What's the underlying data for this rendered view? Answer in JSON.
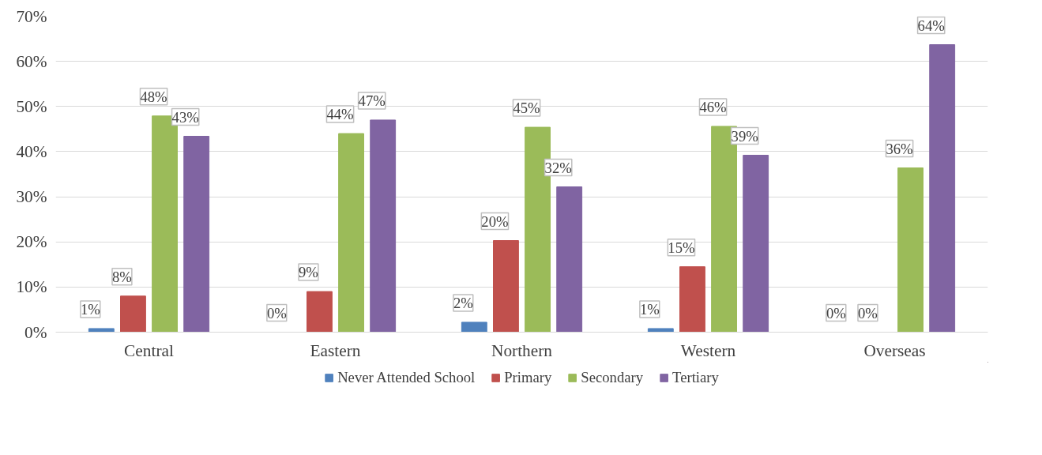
{
  "chart_data": {
    "type": "bar",
    "categories": [
      "Central",
      "Eastern",
      "Northern",
      "Western",
      "Overseas"
    ],
    "series": [
      {
        "name": "Never Attended School",
        "color": "#4f81bd",
        "values": [
          0.8,
          0,
          2.2,
          0.8,
          0
        ],
        "value_labels": [
          "1%",
          "0%",
          "2%",
          "1%",
          "0%"
        ]
      },
      {
        "name": "Primary",
        "color": "#c0504d",
        "values": [
          8,
          9,
          20.3,
          14.5,
          0
        ],
        "value_labels": [
          "8%",
          "9%",
          "20%",
          "15%",
          "0%"
        ]
      },
      {
        "name": "Secondary",
        "color": "#9bbb59",
        "values": [
          47.9,
          44,
          45.4,
          45.6,
          36.4
        ],
        "value_labels": [
          "48%",
          "44%",
          "45%",
          "46%",
          "36%"
        ]
      },
      {
        "name": "Tertiary",
        "color": "#8064a2",
        "values": [
          43.4,
          47,
          32.2,
          39.2,
          63.7
        ],
        "value_labels": [
          "43%",
          "47%",
          "32%",
          "39%",
          "64%"
        ]
      }
    ],
    "ylim": [
      0,
      70
    ],
    "yticks": [
      {
        "value": 0,
        "label": "0%"
      },
      {
        "value": 10,
        "label": "10%"
      },
      {
        "value": 20,
        "label": "20%"
      },
      {
        "value": 30,
        "label": "30%"
      },
      {
        "value": 40,
        "label": "40%"
      },
      {
        "value": 50,
        "label": "50%"
      },
      {
        "value": 60,
        "label": "60%"
      },
      {
        "value": 70,
        "label": "70%"
      }
    ],
    "grid": "y",
    "legend": "bottom"
  }
}
